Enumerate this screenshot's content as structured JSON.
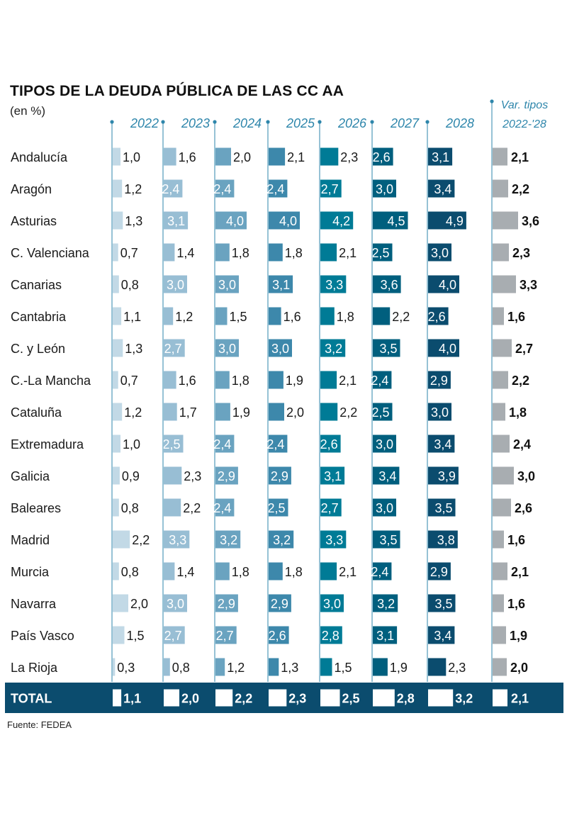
{
  "title": "TIPOS DE LA DEUDA PÚBLICA DE LAS CC AA",
  "subtitle": "(en %)",
  "source": "Fuente: FEDEA",
  "chart_data": {
    "type": "bar",
    "title": "TIPOS DE LA DEUDA PÚBLICA DE LAS CC AA",
    "subtitle": "(en %)",
    "years": [
      "2022",
      "2023",
      "2024",
      "2025",
      "2026",
      "2027",
      "2028"
    ],
    "var_header": [
      "Var. tipos",
      "2022-'28"
    ],
    "colors": [
      "#c2d9e6",
      "#98bed4",
      "#6aa3c0",
      "#3d88ab",
      "#007b96",
      "#005f7e",
      "#0b4c6e"
    ],
    "var_color": "#a8adb1",
    "total_band_color": "#0b4c6e",
    "categories": [
      "Andalucía",
      "Aragón",
      "Asturias",
      "C. Valenciana",
      "Canarias",
      "Cantabria",
      "C. y León",
      "C.-La Mancha",
      "Cataluña",
      "Extremadura",
      "Galicia",
      "Baleares",
      "Madrid",
      "Murcia",
      "Navarra",
      "País Vasco",
      "La Rioja"
    ],
    "rows": [
      {
        "name": "Andalucía",
        "values": [
          "1,0",
          "1,6",
          "2,0",
          "2,1",
          "2,3",
          "2,6",
          "3,1"
        ],
        "var": "2,1"
      },
      {
        "name": "Aragón",
        "values": [
          "1,2",
          "2,4",
          "2,4",
          "2,4",
          "2,7",
          "3,0",
          "3,4"
        ],
        "var": "2,2"
      },
      {
        "name": "Asturias",
        "values": [
          "1,3",
          "3,1",
          "4,0",
          "4,0",
          "4,2",
          "4,5",
          "4,9"
        ],
        "var": "3,6"
      },
      {
        "name": "C. Valenciana",
        "values": [
          "0,7",
          "1,4",
          "1,8",
          "1,8",
          "2,1",
          "2,5",
          "3,0"
        ],
        "var": "2,3"
      },
      {
        "name": "Canarias",
        "values": [
          "0,8",
          "3,0",
          "3,0",
          "3,1",
          "3,3",
          "3,6",
          "4,0"
        ],
        "var": "3,3"
      },
      {
        "name": "Cantabria",
        "values": [
          "1,1",
          "1,2",
          "1,5",
          "1,6",
          "1,8",
          "2,2",
          "2,6"
        ],
        "var": "1,6"
      },
      {
        "name": "C. y León",
        "values": [
          "1,3",
          "2,7",
          "3,0",
          "3,0",
          "3,2",
          "3,5",
          "4,0"
        ],
        "var": "2,7"
      },
      {
        "name": "C.-La Mancha",
        "values": [
          "0,7",
          "1,6",
          "1,8",
          "1,9",
          "2,1",
          "2,4",
          "2,9"
        ],
        "var": "2,2"
      },
      {
        "name": "Cataluña",
        "values": [
          "1,2",
          "1,7",
          "1,9",
          "2,0",
          "2,2",
          "2,5",
          "3,0"
        ],
        "var": "1,8"
      },
      {
        "name": "Extremadura",
        "values": [
          "1,0",
          "2,5",
          "2,4",
          "2,4",
          "2,6",
          "3,0",
          "3,4"
        ],
        "var": "2,4"
      },
      {
        "name": "Galicia",
        "values": [
          "0,9",
          "2,3",
          "2,9",
          "2,9",
          "3,1",
          "3,4",
          "3,9"
        ],
        "var": "3,0"
      },
      {
        "name": "Baleares",
        "values": [
          "0,8",
          "2,2",
          "2,4",
          "2,5",
          "2,7",
          "3,0",
          "3,5"
        ],
        "var": "2,6"
      },
      {
        "name": "Madrid",
        "values": [
          "2,2",
          "3,3",
          "3,2",
          "3,2",
          "3,3",
          "3,5",
          "3,8"
        ],
        "var": "1,6"
      },
      {
        "name": "Murcia",
        "values": [
          "0,8",
          "1,4",
          "1,8",
          "1,8",
          "2,1",
          "2,4",
          "2,9"
        ],
        "var": "2,1"
      },
      {
        "name": "Navarra",
        "values": [
          "2,0",
          "3,0",
          "2,9",
          "2,9",
          "3,0",
          "3,2",
          "3,5"
        ],
        "var": "1,6"
      },
      {
        "name": "País Vasco",
        "values": [
          "1,5",
          "2,7",
          "2,7",
          "2,6",
          "2,8",
          "3,1",
          "3,4"
        ],
        "var": "1,9"
      },
      {
        "name": "La Rioja",
        "values": [
          "0,3",
          "0,8",
          "1,2",
          "1,3",
          "1,5",
          "1,9",
          "2,3"
        ],
        "var": "2,0"
      }
    ],
    "total": {
      "name": "TOTAL",
      "values": [
        "1,1",
        "2,0",
        "2,2",
        "2,3",
        "2,5",
        "2,8",
        "3,2"
      ],
      "var": "2,1"
    }
  }
}
